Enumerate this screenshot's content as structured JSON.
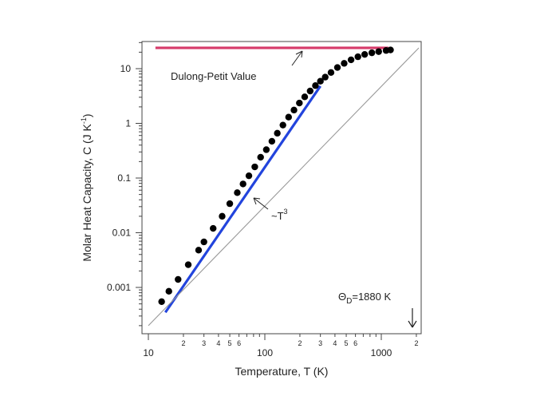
{
  "chart_data": {
    "type": "scatter",
    "title": "",
    "xlabel": "Temperature, T (K)",
    "ylabel": "Molar Heat Capacity, C (J K",
    "ylabel_sup": "-1",
    "ylabel_close": ")",
    "x_scale": "log",
    "y_scale": "log",
    "xlim": [
      10,
      2100
    ],
    "ylim": [
      0.00015,
      30
    ],
    "grid": false,
    "legend": "none",
    "x_major_ticks": [
      {
        "value": 10,
        "label": "10"
      },
      {
        "value": 100,
        "label": "100"
      },
      {
        "value": 1000,
        "label": "1000"
      }
    ],
    "x_minor_ticks": [
      {
        "value": 20,
        "label": "2"
      },
      {
        "value": 30,
        "label": "3"
      },
      {
        "value": 40,
        "label": "4"
      },
      {
        "value": 50,
        "label": "5"
      },
      {
        "value": 60,
        "label": "6"
      },
      {
        "value": 70,
        "label": ""
      },
      {
        "value": 80,
        "label": ""
      },
      {
        "value": 90,
        "label": ""
      },
      {
        "value": 200,
        "label": "2"
      },
      {
        "value": 300,
        "label": "3"
      },
      {
        "value": 400,
        "label": "4"
      },
      {
        "value": 500,
        "label": "5"
      },
      {
        "value": 600,
        "label": "6"
      },
      {
        "value": 700,
        "label": ""
      },
      {
        "value": 800,
        "label": ""
      },
      {
        "value": 900,
        "label": ""
      },
      {
        "value": 2000,
        "label": "2"
      }
    ],
    "y_major_ticks": [
      {
        "value": 0.001,
        "label": "0.001"
      },
      {
        "value": 0.01,
        "label": "0.01"
      },
      {
        "value": 0.1,
        "label": "0.1"
      },
      {
        "value": 1,
        "label": "1"
      },
      {
        "value": 10,
        "label": "10"
      }
    ],
    "series": [
      {
        "type": "scatter",
        "color": "#000000",
        "points": [
          [
            13,
            0.00055
          ],
          [
            15,
            0.00085
          ],
          [
            18,
            0.0014
          ],
          [
            22,
            0.0026
          ],
          [
            27,
            0.0048
          ],
          [
            30,
            0.0068
          ],
          [
            36,
            0.012
          ],
          [
            43,
            0.02
          ],
          [
            50,
            0.034
          ],
          [
            58,
            0.054
          ],
          [
            65,
            0.078
          ],
          [
            73,
            0.11
          ],
          [
            82,
            0.16
          ],
          [
            92,
            0.24
          ],
          [
            103,
            0.33
          ],
          [
            115,
            0.47
          ],
          [
            128,
            0.66
          ],
          [
            143,
            0.93
          ],
          [
            160,
            1.3
          ],
          [
            178,
            1.75
          ],
          [
            198,
            2.35
          ],
          [
            220,
            3.05
          ],
          [
            245,
            3.9
          ],
          [
            272,
            4.9
          ],
          [
            300,
            5.9
          ],
          [
            330,
            7.0
          ],
          [
            370,
            8.5
          ],
          [
            420,
            10.5
          ],
          [
            480,
            12.5
          ],
          [
            550,
            14.5
          ],
          [
            630,
            16.5
          ],
          [
            720,
            18.2
          ],
          [
            830,
            19.5
          ],
          [
            950,
            20.5
          ],
          [
            1100,
            21.5
          ],
          [
            1200,
            22
          ]
        ]
      },
      {
        "type": "line",
        "color": "#2244dd",
        "points": [
          [
            14,
            0.00035
          ],
          [
            300,
            4.8
          ]
        ]
      },
      {
        "type": "line",
        "color": "#d63a6a",
        "points": [
          [
            11.5,
            24
          ],
          [
            1150,
            24
          ]
        ]
      },
      {
        "type": "line",
        "color": "#999999",
        "points": [
          [
            10,
            0.0002
          ],
          [
            2100,
            24
          ]
        ]
      }
    ],
    "annotations": [
      {
        "text": "Dulong-Petit Value",
        "x": 200,
        "y": 9
      },
      {
        "text": "~T",
        "sup": "3",
        "x": 66,
        "y": 0.04
      },
      {
        "text": "Θ",
        "sub": "D",
        "rest": "=1880 K",
        "x": 1100,
        "y": 0.0007
      }
    ]
  }
}
